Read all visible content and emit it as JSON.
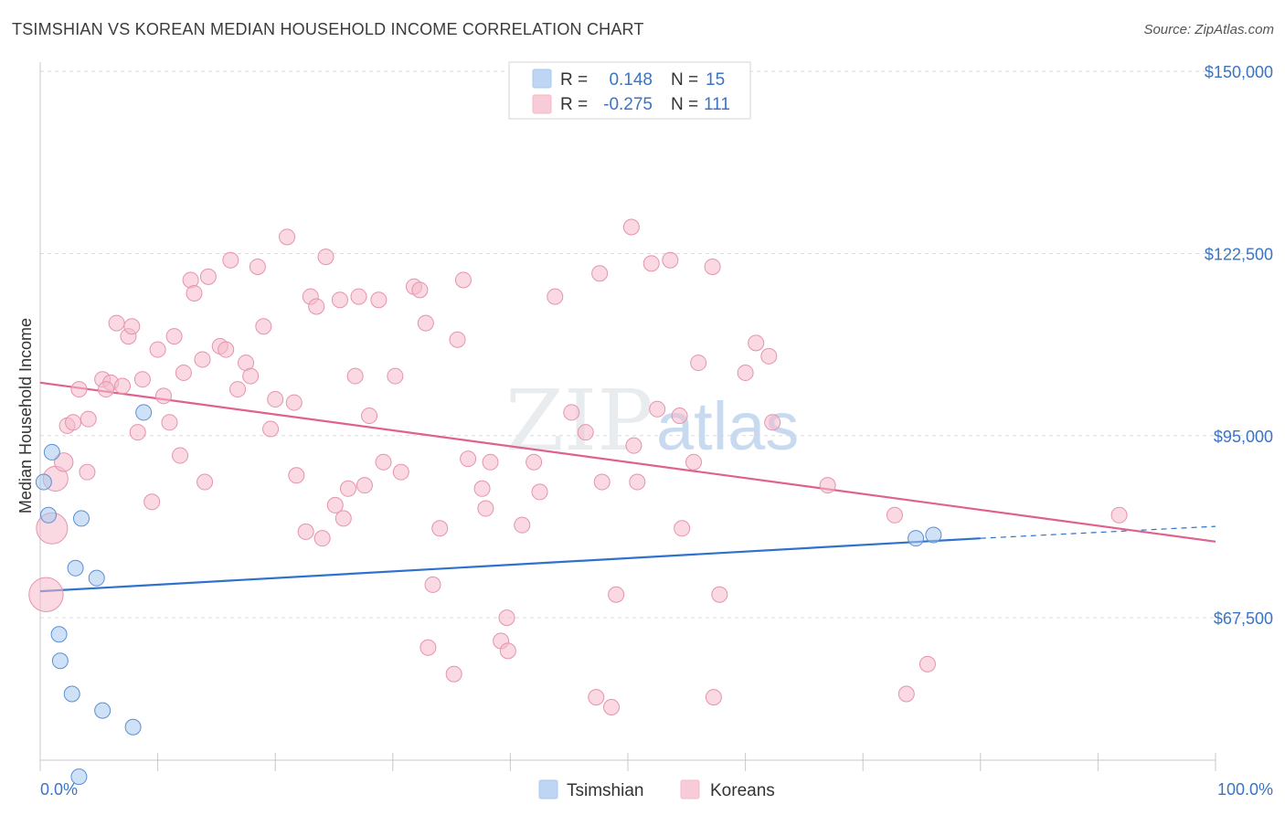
{
  "title": "TSIMSHIAN VS KOREAN MEDIAN HOUSEHOLD INCOME CORRELATION CHART",
  "source": "Source: ZipAtlas.com",
  "watermark": {
    "zip": "ZIP",
    "atlas": "atlas"
  },
  "legend": {
    "rows": [
      {
        "r_label": "R =",
        "r_value": "0.148",
        "n_label": "N =",
        "n_value": "15",
        "color": "#a8c8ef"
      },
      {
        "r_label": "R =",
        "r_value": "-0.275",
        "n_label": "N =",
        "n_value": "111",
        "color": "#f5b9cb"
      }
    ]
  },
  "bottom_legend": [
    {
      "label": "Tsimshian",
      "color": "#a8c8ef"
    },
    {
      "label": "Koreans",
      "color": "#f5b9cb"
    }
  ],
  "chart_data": {
    "type": "scatter",
    "title": "TSIMSHIAN VS KOREAN MEDIAN HOUSEHOLD INCOME CORRELATION CHART",
    "xlabel": "",
    "ylabel": "Median Household Income",
    "xlim": [
      0,
      100
    ],
    "ylim": [
      46000,
      152500
    ],
    "x_tick_labels": [
      "0.0%",
      "100.0%"
    ],
    "y_ticks": [
      {
        "value": 67500,
        "label": "$67,500"
      },
      {
        "value": 95000,
        "label": "$95,000"
      },
      {
        "value": 122500,
        "label": "$122,500"
      },
      {
        "value": 150000,
        "label": "$150,000"
      }
    ],
    "series": [
      {
        "name": "Tsimshian",
        "color": "#a8c8ef",
        "stroke": "#5b8fd4",
        "trend": {
          "x0": 0,
          "y0": 71500,
          "x1": 80,
          "y1": 79500,
          "dash_to_x": 100,
          "dash_y": 81300,
          "color": "#2f72cc"
        },
        "points": [
          {
            "x": 1.0,
            "y": 92500,
            "s": 1
          },
          {
            "x": 0.3,
            "y": 88000,
            "s": 1
          },
          {
            "x": 0.7,
            "y": 83000,
            "s": 1
          },
          {
            "x": 3.5,
            "y": 82500,
            "s": 1
          },
          {
            "x": 8.8,
            "y": 98500,
            "s": 1
          },
          {
            "x": 3.0,
            "y": 75000,
            "s": 1
          },
          {
            "x": 4.8,
            "y": 73500,
            "s": 1
          },
          {
            "x": 1.6,
            "y": 65000,
            "s": 1
          },
          {
            "x": 1.7,
            "y": 61000,
            "s": 1
          },
          {
            "x": 2.7,
            "y": 56000,
            "s": 1
          },
          {
            "x": 5.3,
            "y": 53500,
            "s": 1
          },
          {
            "x": 7.9,
            "y": 51000,
            "s": 1
          },
          {
            "x": 3.3,
            "y": 43500,
            "s": 1
          },
          {
            "x": 74.5,
            "y": 79500,
            "s": 1
          },
          {
            "x": 76.0,
            "y": 80000,
            "s": 1
          }
        ]
      },
      {
        "name": "Koreans",
        "color": "#f5b9cb",
        "stroke": "#e493ad",
        "trend": {
          "x0": 0,
          "y0": 103000,
          "x1": 100,
          "y1": 79000,
          "color": "#e0608e"
        },
        "points": [
          {
            "x": 1.3,
            "y": 88500,
            "s": 1.6
          },
          {
            "x": 1.0,
            "y": 81000,
            "s": 2
          },
          {
            "x": 0.5,
            "y": 71000,
            "s": 2.2
          },
          {
            "x": 2.0,
            "y": 91000,
            "s": 1.2
          },
          {
            "x": 2.3,
            "y": 96500,
            "s": 1
          },
          {
            "x": 2.8,
            "y": 97000,
            "s": 1
          },
          {
            "x": 3.3,
            "y": 102000,
            "s": 1
          },
          {
            "x": 4.1,
            "y": 97500,
            "s": 1
          },
          {
            "x": 4.0,
            "y": 89500,
            "s": 1
          },
          {
            "x": 5.3,
            "y": 103500,
            "s": 1
          },
          {
            "x": 6.0,
            "y": 103000,
            "s": 1
          },
          {
            "x": 5.6,
            "y": 102000,
            "s": 1
          },
          {
            "x": 7.0,
            "y": 102500,
            "s": 1
          },
          {
            "x": 6.5,
            "y": 112000,
            "s": 1
          },
          {
            "x": 7.5,
            "y": 110000,
            "s": 1
          },
          {
            "x": 7.8,
            "y": 111500,
            "s": 1
          },
          {
            "x": 8.7,
            "y": 103500,
            "s": 1
          },
          {
            "x": 8.3,
            "y": 95500,
            "s": 1
          },
          {
            "x": 9.5,
            "y": 85000,
            "s": 1
          },
          {
            "x": 10.0,
            "y": 108000,
            "s": 1
          },
          {
            "x": 10.5,
            "y": 101000,
            "s": 1
          },
          {
            "x": 11.0,
            "y": 97000,
            "s": 1
          },
          {
            "x": 11.4,
            "y": 110000,
            "s": 1
          },
          {
            "x": 11.9,
            "y": 92000,
            "s": 1
          },
          {
            "x": 12.2,
            "y": 104500,
            "s": 1
          },
          {
            "x": 12.8,
            "y": 118500,
            "s": 1
          },
          {
            "x": 13.1,
            "y": 116500,
            "s": 1
          },
          {
            "x": 13.8,
            "y": 106500,
            "s": 1
          },
          {
            "x": 14.3,
            "y": 119000,
            "s": 1
          },
          {
            "x": 14.0,
            "y": 88000,
            "s": 1
          },
          {
            "x": 15.3,
            "y": 108500,
            "s": 1
          },
          {
            "x": 15.8,
            "y": 108000,
            "s": 1
          },
          {
            "x": 16.2,
            "y": 121500,
            "s": 1
          },
          {
            "x": 16.8,
            "y": 102000,
            "s": 1
          },
          {
            "x": 17.5,
            "y": 106000,
            "s": 1
          },
          {
            "x": 17.9,
            "y": 104000,
            "s": 1
          },
          {
            "x": 18.5,
            "y": 120500,
            "s": 1
          },
          {
            "x": 19.0,
            "y": 111500,
            "s": 1
          },
          {
            "x": 19.6,
            "y": 96000,
            "s": 1
          },
          {
            "x": 20.0,
            "y": 100500,
            "s": 1
          },
          {
            "x": 21.0,
            "y": 125000,
            "s": 1
          },
          {
            "x": 21.6,
            "y": 100000,
            "s": 1
          },
          {
            "x": 21.8,
            "y": 89000,
            "s": 1
          },
          {
            "x": 22.6,
            "y": 80500,
            "s": 1
          },
          {
            "x": 23.0,
            "y": 116000,
            "s": 1
          },
          {
            "x": 23.5,
            "y": 114500,
            "s": 1
          },
          {
            "x": 24.0,
            "y": 79500,
            "s": 1
          },
          {
            "x": 24.3,
            "y": 122000,
            "s": 1
          },
          {
            "x": 25.1,
            "y": 84500,
            "s": 1
          },
          {
            "x": 25.5,
            "y": 115500,
            "s": 1
          },
          {
            "x": 25.8,
            "y": 82500,
            "s": 1
          },
          {
            "x": 26.2,
            "y": 87000,
            "s": 1
          },
          {
            "x": 26.8,
            "y": 104000,
            "s": 1
          },
          {
            "x": 27.1,
            "y": 116000,
            "s": 1
          },
          {
            "x": 27.6,
            "y": 87500,
            "s": 1
          },
          {
            "x": 28.0,
            "y": 98000,
            "s": 1
          },
          {
            "x": 29.2,
            "y": 91000,
            "s": 1
          },
          {
            "x": 28.8,
            "y": 115500,
            "s": 1
          },
          {
            "x": 30.2,
            "y": 104000,
            "s": 1
          },
          {
            "x": 30.7,
            "y": 89500,
            "s": 1
          },
          {
            "x": 31.8,
            "y": 117500,
            "s": 1
          },
          {
            "x": 32.3,
            "y": 117000,
            "s": 1
          },
          {
            "x": 32.8,
            "y": 112000,
            "s": 1
          },
          {
            "x": 34.0,
            "y": 81000,
            "s": 1
          },
          {
            "x": 33.4,
            "y": 72500,
            "s": 1
          },
          {
            "x": 33.0,
            "y": 63000,
            "s": 1
          },
          {
            "x": 35.2,
            "y": 59000,
            "s": 1
          },
          {
            "x": 35.5,
            "y": 109500,
            "s": 1
          },
          {
            "x": 36.0,
            "y": 118500,
            "s": 1
          },
          {
            "x": 36.4,
            "y": 91500,
            "s": 1
          },
          {
            "x": 37.6,
            "y": 87000,
            "s": 1
          },
          {
            "x": 37.9,
            "y": 84000,
            "s": 1
          },
          {
            "x": 38.3,
            "y": 91000,
            "s": 1
          },
          {
            "x": 39.2,
            "y": 64000,
            "s": 1
          },
          {
            "x": 39.7,
            "y": 67500,
            "s": 1
          },
          {
            "x": 39.8,
            "y": 62500,
            "s": 1
          },
          {
            "x": 41.0,
            "y": 81500,
            "s": 1
          },
          {
            "x": 42.0,
            "y": 91000,
            "s": 1
          },
          {
            "x": 42.5,
            "y": 86500,
            "s": 1
          },
          {
            "x": 43.8,
            "y": 116000,
            "s": 1
          },
          {
            "x": 45.2,
            "y": 98500,
            "s": 1
          },
          {
            "x": 46.4,
            "y": 95500,
            "s": 1
          },
          {
            "x": 47.3,
            "y": 55500,
            "s": 1
          },
          {
            "x": 47.6,
            "y": 119500,
            "s": 1
          },
          {
            "x": 47.8,
            "y": 88000,
            "s": 1
          },
          {
            "x": 49.0,
            "y": 71000,
            "s": 1
          },
          {
            "x": 48.6,
            "y": 54000,
            "s": 1
          },
          {
            "x": 50.3,
            "y": 126500,
            "s": 1
          },
          {
            "x": 50.5,
            "y": 93500,
            "s": 1
          },
          {
            "x": 50.8,
            "y": 88000,
            "s": 1
          },
          {
            "x": 52.0,
            "y": 121000,
            "s": 1
          },
          {
            "x": 52.5,
            "y": 99000,
            "s": 1
          },
          {
            "x": 53.6,
            "y": 121500,
            "s": 1
          },
          {
            "x": 54.4,
            "y": 98000,
            "s": 1
          },
          {
            "x": 54.6,
            "y": 81000,
            "s": 1
          },
          {
            "x": 55.6,
            "y": 91000,
            "s": 1
          },
          {
            "x": 56.0,
            "y": 106000,
            "s": 1
          },
          {
            "x": 57.3,
            "y": 55500,
            "s": 1
          },
          {
            "x": 57.8,
            "y": 71000,
            "s": 1
          },
          {
            "x": 57.2,
            "y": 120500,
            "s": 1
          },
          {
            "x": 60.0,
            "y": 104500,
            "s": 1
          },
          {
            "x": 60.9,
            "y": 109000,
            "s": 1
          },
          {
            "x": 62.0,
            "y": 107000,
            "s": 1
          },
          {
            "x": 62.3,
            "y": 97000,
            "s": 1
          },
          {
            "x": 67.0,
            "y": 87500,
            "s": 1
          },
          {
            "x": 72.7,
            "y": 83000,
            "s": 1
          },
          {
            "x": 73.7,
            "y": 56000,
            "s": 1
          },
          {
            "x": 75.5,
            "y": 60500,
            "s": 1
          },
          {
            "x": 91.8,
            "y": 83000,
            "s": 1
          }
        ]
      }
    ]
  }
}
